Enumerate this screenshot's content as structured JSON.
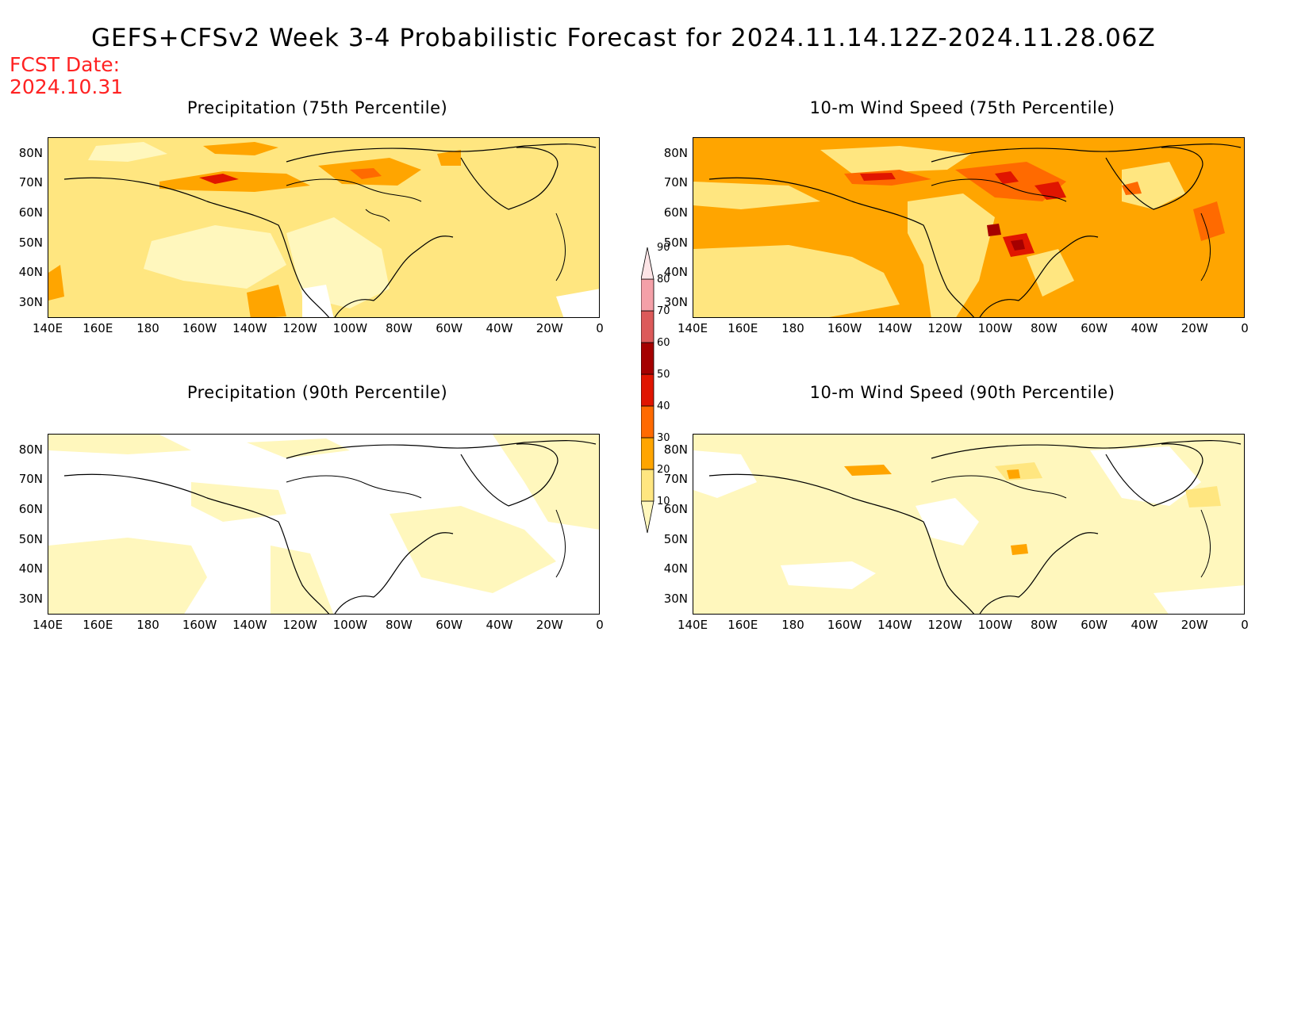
{
  "title": "GEFS+CFSv2 Week 3-4 Probabilistic Forecast for 2024.11.14.12Z-2024.11.28.06Z",
  "fcst_label": "FCST Date:",
  "fcst_date": "2024.10.31",
  "lat_labels": [
    "80N",
    "70N",
    "60N",
    "50N",
    "40N",
    "30N"
  ],
  "lon_labels": [
    "140E",
    "160E",
    "180",
    "160W",
    "140W",
    "120W",
    "100W",
    "80W",
    "60W",
    "40W",
    "20W",
    "0"
  ],
  "panels": [
    {
      "id": "precip75",
      "title": "Precipitation (75th Percentile)"
    },
    {
      "id": "wind75",
      "title": "10-m Wind Speed (75th Percentile)"
    },
    {
      "id": "precip90",
      "title": "Precipitation (90th Percentile)"
    },
    {
      "id": "wind90",
      "title": "10-m Wind Speed (90th Percentile)"
    }
  ],
  "colorbar": {
    "levels": [
      "10",
      "20",
      "30",
      "40",
      "50",
      "60",
      "70",
      "80",
      "90"
    ],
    "colors": [
      "#fff7bd",
      "#ffe680",
      "#ffa500",
      "#ff6a00",
      "#e01500",
      "#a50000",
      "#dc5a5a",
      "#f4a0a8",
      "#fde4e6"
    ]
  },
  "palette": {
    "white": "#ffffff",
    "pale": "#fff7bd",
    "light": "#ffe680",
    "orange": "#ffa500",
    "dark_orange": "#ff6a00",
    "red": "#e01500",
    "dark_red": "#a50000"
  }
}
